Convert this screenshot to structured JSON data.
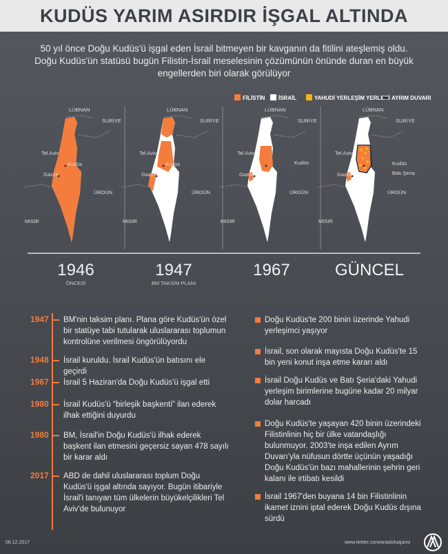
{
  "header": {
    "title": "KUDÜS YARIM ASIRDIR İŞGAL ALTINDA",
    "subtitle": "50 yıl önce Doğu Kudüs'ü işgal eden İsrail bitmeyen bir kavganın da fitilini ateşlemiş oldu. Doğu Kudüs'ün statüsü bugün Filistin-İsrail meselesinin çözümünün önünde duran en büyük engellerden biri olarak görülüyor"
  },
  "legend": [
    {
      "label": "FİLİSTİN",
      "color": "#f47c3c"
    },
    {
      "label": "İSRAİL",
      "color": "#ffffff"
    },
    {
      "label": "YAHUDİ YERLEŞİM YERLERİ",
      "color": "#f5b21a"
    },
    {
      "label": "AYRIM DUVARI",
      "color": "#222222"
    }
  ],
  "maps": [
    {
      "year": "1946",
      "caption": "ÖNCESİ",
      "places": [
        "LÜBNAN",
        "SURİYE",
        "Tel Aviv",
        "Kudüs",
        "Gazze",
        "ÜRDÜN",
        "MISIR"
      ]
    },
    {
      "year": "1947",
      "caption": "BM TAKSİM PLANI",
      "places": [
        "LÜBNAN",
        "SURİYE",
        "Tel Aviv",
        "Kudüs",
        "Gazze",
        "ÜRDÜN",
        "MISIR"
      ]
    },
    {
      "year": "1967",
      "places": [
        "LÜBNAN",
        "SURİYE",
        "Tel Aviv",
        "Kudüs",
        "Gazze",
        "ÜRDÜN",
        "MISIR"
      ]
    },
    {
      "year": "GÜNCEL",
      "places": [
        "LÜBNAN",
        "SURİYE",
        "Tel Aviv",
        "Kudüs",
        "Batı Şeria",
        "Gazze",
        "ÜRDÜN",
        "MISIR"
      ]
    }
  ],
  "timeline": [
    {
      "year": "1947",
      "text": "BM'nin taksim planı. Plana göre Kudüs'ün özel bir statüye tabi tutularak uluslararası toplumun kontrolüne verilmesi öngörülüyordu"
    },
    {
      "year": "1948",
      "text": "İsrail kuruldu. İsrail Kudüs'ün batısını ele geçirdi"
    },
    {
      "year": "1967",
      "text": "İsrail 5 Haziran'da Doğu Kudüs'ü işgal etti"
    },
    {
      "year": "1980",
      "text": "İsrail Kudüs'ü \"birleşik başkenti\" ilan ederek ilhak ettiğini duyurdu"
    },
    {
      "year": "1980",
      "text": "BM, İsrail'in Doğu Kudüs'ü ilhak ederek başkent ilan etmesini geçersiz sayan 478 sayılı bir karar aldı"
    },
    {
      "year": "2017",
      "text": "ABD de dahil uluslararası toplum Doğu Kudüs'ü işgal altında sayıyor. Bugün itibariyle İsrail'i tanıyan tüm ülkelerin büyükelçilikleri Tel Aviv'de bulunuyor"
    }
  ],
  "facts": [
    "Doğu Kudüs'te 200 binin üzerinde Yahudi yerleşimci yaşıyor",
    "İsrail, son olarak mayısta Doğu Kudüs'te 15 bin yeni konut inşa etme kararı aldı",
    "İsrail Doğu Kudüs ve Batı Şeria'daki Yahudi yerleşim birimlerine bugüne kadar 20 milyar dolar harcadı",
    "Doğu Kudüs'te yaşayan 420 binin üzerindeki Filistinlinin hiç bir ülke vatandaşlığı bulunmuyor. 2003'te inşa edilen Ayrım Duvarı'yla nüfusun dörtte üçünün yaşadığı Doğu Kudüs'ün bazı mahallerinin şehrin geri kalanı ile irtibatı kesildi",
    "İsrail 1967'den buyana 14 bin Filistinlinin ikamet iznini iptal ederek Doğu Kudüs dışına sürdü"
  ],
  "footer": {
    "date": "06.12.2017",
    "source": "www.twitter.com/anadoluajansi"
  }
}
